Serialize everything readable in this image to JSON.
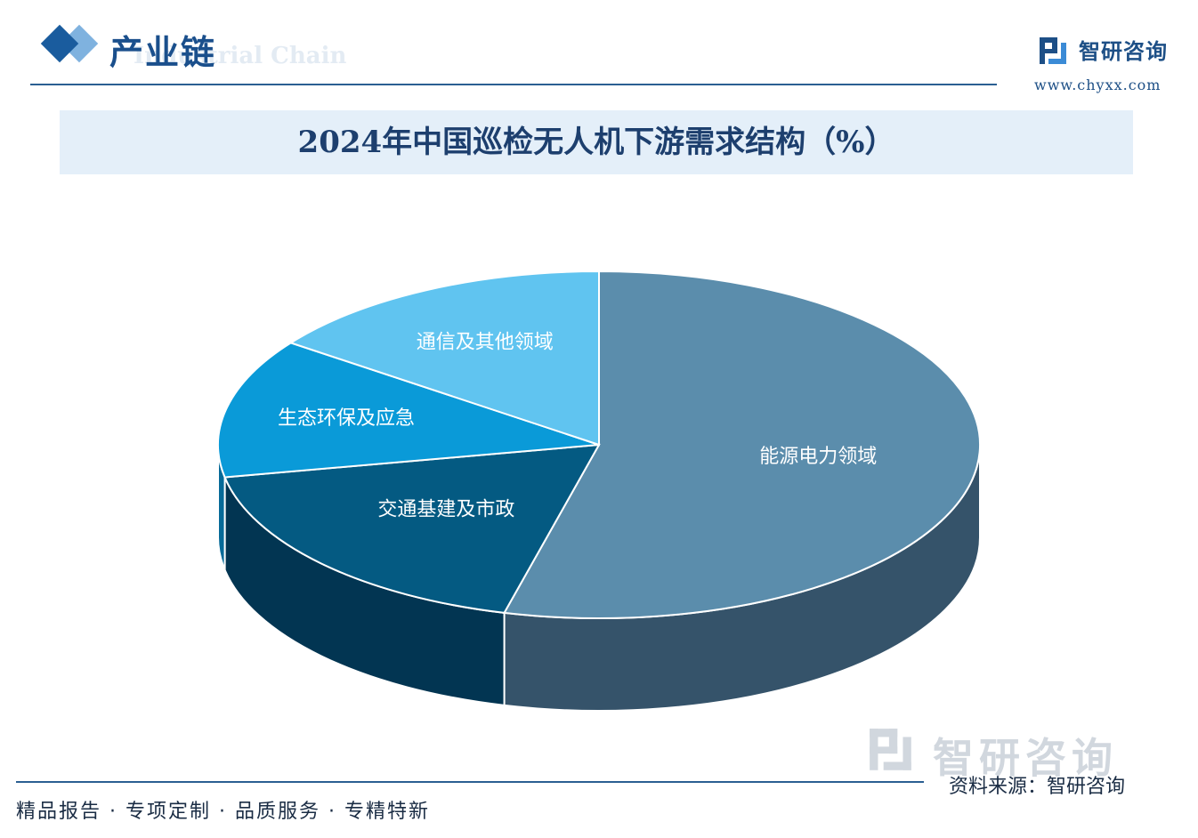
{
  "header": {
    "section_title": "产业链",
    "section_subtitle": "Industrial Chain",
    "brand_name": "智研咨询",
    "brand_url": "www.chyxx.com"
  },
  "chart_data": {
    "type": "pie",
    "title": "2024年中国巡检无人机下游需求结构（%）",
    "categories": [
      "能源电力领域",
      "交通基建及市政",
      "生态环保及应急",
      "通信及其他领域"
    ],
    "values": [
      54,
      18,
      13,
      15
    ],
    "colors": [
      "#5b8dac",
      "#045a82",
      "#0a9ad8",
      "#60c4f0"
    ],
    "side_colors": [
      "#35536a",
      "#023552",
      "#066a98",
      "#3c94bb"
    ]
  },
  "footer": {
    "slogan": "精品报告 · 专项定制 · 品质服务 · 专精特新",
    "source": "资料来源：智研咨询",
    "watermark": "智研咨询"
  }
}
